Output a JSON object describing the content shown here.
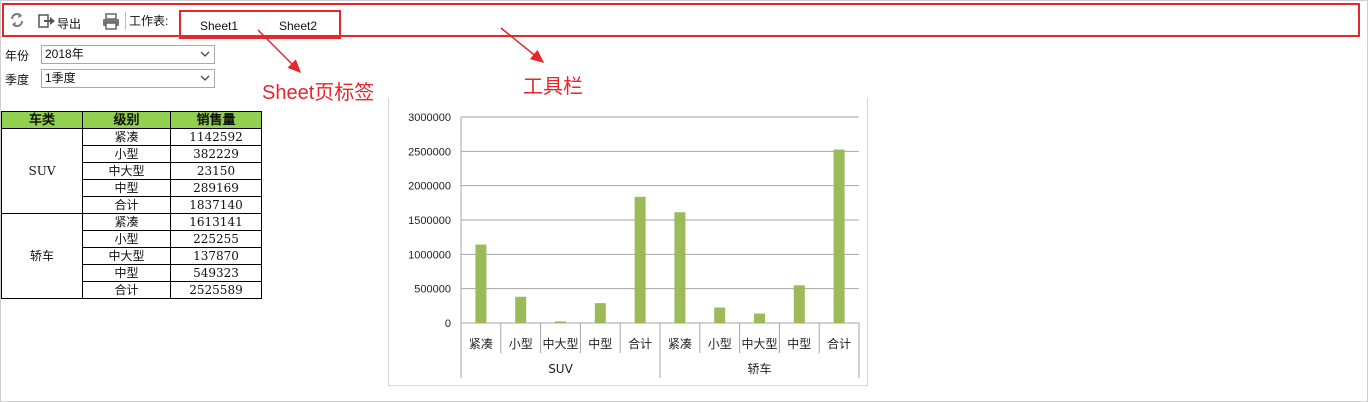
{
  "toolbar": {
    "export_label": "导出",
    "worksheet_label": "工作表:",
    "sheets": [
      "Sheet1",
      "Sheet2"
    ]
  },
  "filters": {
    "year_label": "年份",
    "year_value": "2018年",
    "quarter_label": "季度",
    "quarter_value": "1季度"
  },
  "annotations": {
    "sheet_tab_label": "Sheet页标签",
    "toolbar_label": "工具栏"
  },
  "table": {
    "headers": [
      "车类",
      "级别",
      "销售量"
    ],
    "groups": [
      {
        "name": "SUV",
        "rows": [
          {
            "level": "紧凑",
            "sales": "1142592"
          },
          {
            "level": "小型",
            "sales": "382229"
          },
          {
            "level": "中大型",
            "sales": "23150"
          },
          {
            "level": "中型",
            "sales": "289169"
          },
          {
            "level": "合计",
            "sales": "1837140"
          }
        ]
      },
      {
        "name": "轿车",
        "rows": [
          {
            "level": "紧凑",
            "sales": "1613141"
          },
          {
            "level": "小型",
            "sales": "225255"
          },
          {
            "level": "中大型",
            "sales": "137870"
          },
          {
            "level": "中型",
            "sales": "549323"
          },
          {
            "level": "合计",
            "sales": "2525589"
          }
        ]
      }
    ]
  },
  "colors": {
    "accent_red": "#e8262b",
    "header_green": "#92d050",
    "bar_green": "#9bbb59"
  },
  "chart_data": {
    "type": "bar",
    "groups": [
      {
        "name": "SUV",
        "categories": [
          "紧凑",
          "小型",
          "中大型",
          "中型",
          "合计"
        ],
        "values": [
          1142592,
          382229,
          23150,
          289169,
          1837140
        ]
      },
      {
        "name": "轿车",
        "categories": [
          "紧凑",
          "小型",
          "中大型",
          "中型",
          "合计"
        ],
        "values": [
          1613141,
          225255,
          137870,
          549323,
          2525589
        ]
      }
    ],
    "y_ticks": [
      "0",
      "500000",
      "1000000",
      "1500000",
      "2000000",
      "2500000",
      "3000000"
    ],
    "ylim": [
      0,
      3000000
    ],
    "grid": true,
    "legend": "none"
  }
}
